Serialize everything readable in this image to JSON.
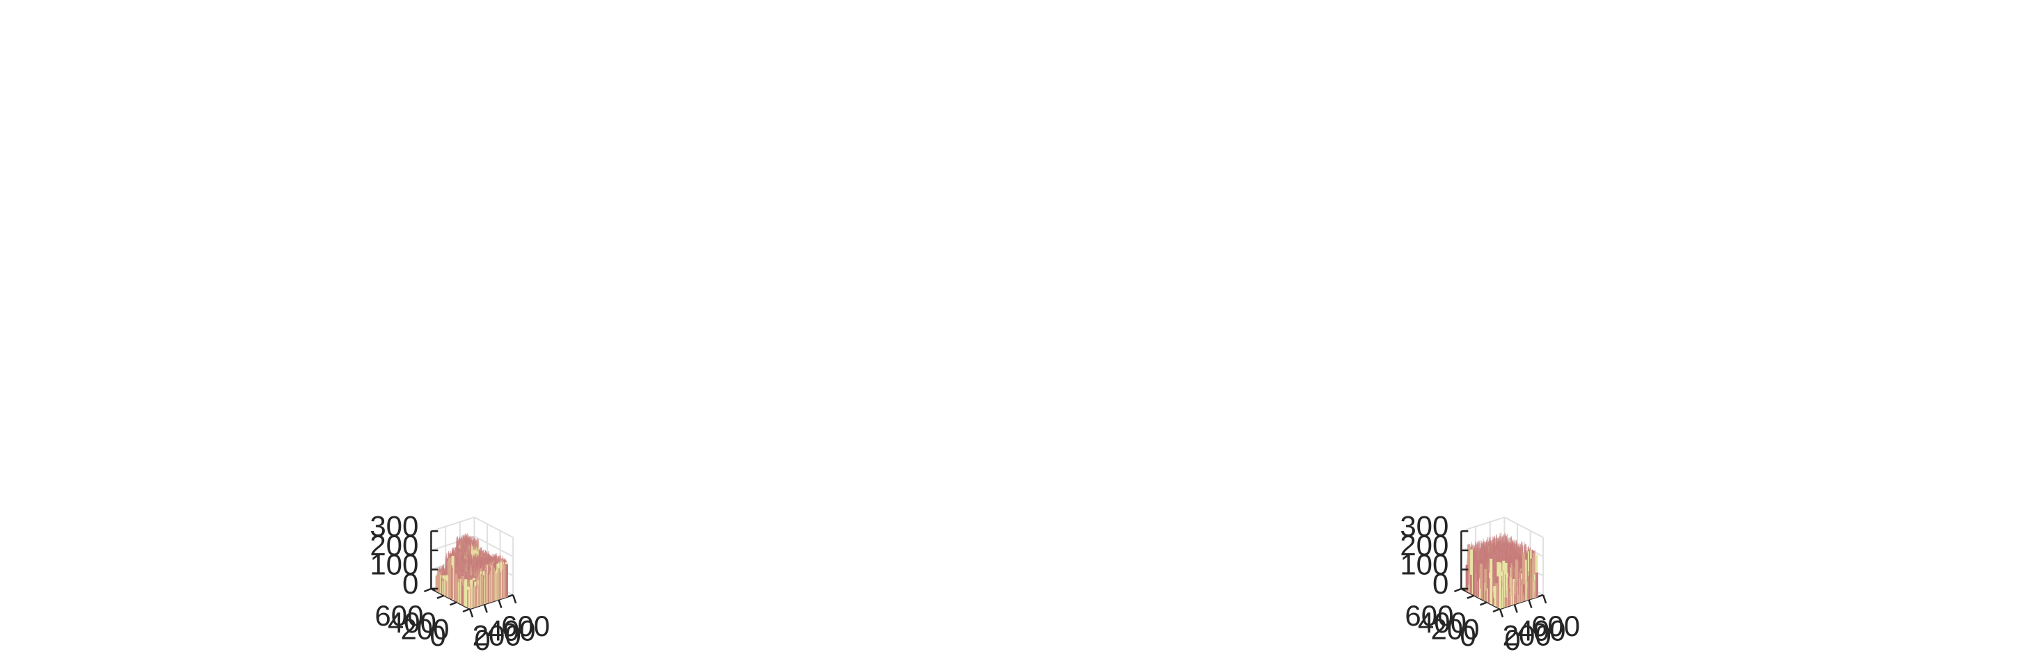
{
  "colors": {
    "axis": "#262626",
    "grid": "#e0e0e0",
    "surface_dark": "#c77b7b",
    "surface_mid": "#d9a48a",
    "surface_light": "#e8e4a4"
  },
  "chart_data": [
    {
      "type": "surface3d",
      "title": "",
      "xlabel": "",
      "ylabel": "",
      "zlabel": "",
      "xlim": [
        0,
        600
      ],
      "ylim": [
        0,
        600
      ],
      "zlim": [
        0,
        300
      ],
      "x_ticks": [
        "0",
        "200",
        "400",
        "600"
      ],
      "y_ticks": [
        "0",
        "200",
        "400",
        "600"
      ],
      "z_ticks": [
        "0",
        "100",
        "200",
        "300"
      ],
      "grid": true,
      "data_extent": {
        "x": [
          0,
          512
        ],
        "y": [
          0,
          512
        ]
      },
      "z_profile": "structured",
      "typical_z_range": [
        70,
        260
      ]
    },
    {
      "type": "surface3d",
      "title": "",
      "xlabel": "",
      "ylabel": "",
      "zlabel": "",
      "xlim": [
        0,
        600
      ],
      "ylim": [
        0,
        600
      ],
      "zlim": [
        0,
        300
      ],
      "x_ticks": [
        "0",
        "200",
        "400",
        "600"
      ],
      "y_ticks": [
        "0",
        "200",
        "400",
        "600"
      ],
      "z_ticks": [
        "0",
        "100",
        "200",
        "300"
      ],
      "grid": true,
      "data_extent": {
        "x": [
          0,
          512
        ],
        "y": [
          0,
          512
        ]
      },
      "z_profile": "uniform-noise",
      "typical_z_range": [
        0,
        255
      ]
    }
  ]
}
